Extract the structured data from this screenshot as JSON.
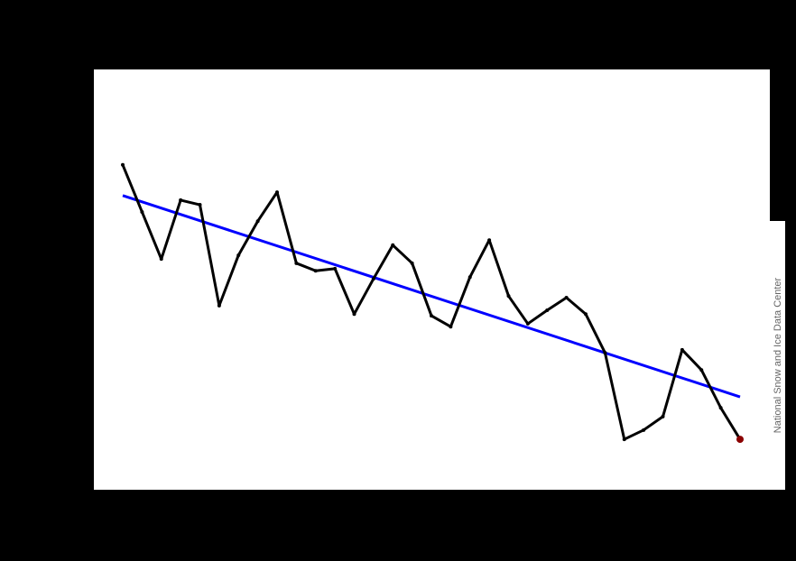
{
  "chart_data": {
    "type": "line",
    "credit": "National Snow and Ice Data Center",
    "ylim": [
      0,
      100
    ],
    "series": [
      {
        "color": "#000000",
        "highlight_color": "#8b0000",
        "values": [
          77.3,
          66.1,
          54.9,
          68.9,
          67.8,
          43.8,
          55.8,
          63.9,
          70.8,
          53.9,
          52.1,
          52.6,
          41.8,
          50.2,
          58.2,
          53.9,
          41.4,
          38.8,
          50.6,
          59.4,
          46.1,
          39.5,
          42.7,
          45.7,
          41.8,
          32.6,
          12.0,
          14.2,
          17.4,
          33.3,
          28.5,
          19.5,
          12.0
        ]
      }
    ],
    "trend": {
      "color": "#0000ff",
      "values": [
        70.0,
        22.1
      ]
    }
  }
}
